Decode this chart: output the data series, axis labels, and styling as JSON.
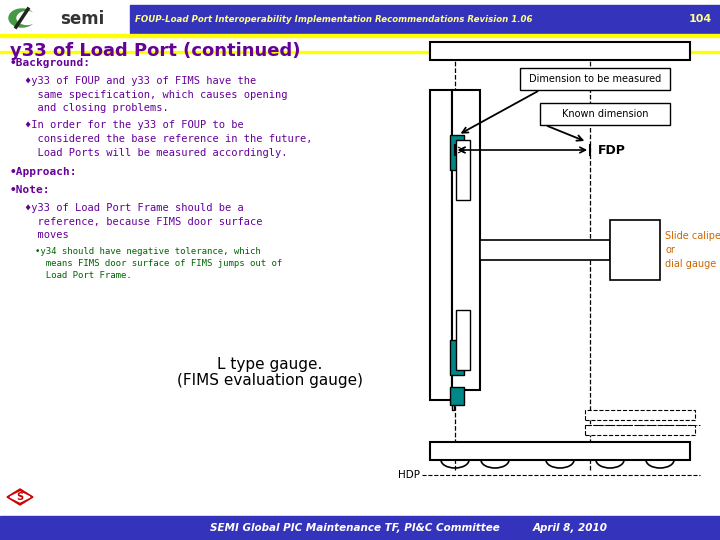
{
  "title_text": "FOUP-Load Port Interoperability Implementation Recommendations Revision 1.06",
  "page_number": "104",
  "slide_title": "y33 of Load Port (continued)",
  "header_bg": "#3333bb",
  "header_line": "#ffff00",
  "footer_bg": "#3333bb",
  "footer_text": "SEMI Global PIC Maintenance TF, PI&C Committee",
  "footer_date": "April 8, 2010",
  "bg_color": "#ffffff",
  "text_color_purple": "#660099",
  "text_color_dark": "#000000",
  "text_color_orange": "#cc6600",
  "text_color_green": "#006600",
  "semi_green": "#449944",
  "teal_color": "#008888",
  "bullet1_title": "•Background:",
  "bullet1_sub1_line1": "♦y33 of FOUP and y33 of FIMS have the",
  "bullet1_sub1_line2": "  same specification, which causes opening",
  "bullet1_sub1_line3": "  and closing problems.",
  "bullet1_sub2_line1": "♦In order for the y33 of FOUP to be",
  "bullet1_sub2_line2": "  considered the base reference in the future,",
  "bullet1_sub2_line3": "  Load Ports will be measured accordingly.",
  "bullet2_title": "•Approach:",
  "bullet3_title": "•Note:",
  "bullet3_sub1_line1": "♦y33 of Load Port Frame should be a",
  "bullet3_sub1_line2": "  reference, because FIMS door surface",
  "bullet3_sub1_line3": "  moves",
  "bullet3_sub2_line1": "•y34 should have negative tolerance, which",
  "bullet3_sub2_line2": "  means FIMS door surface of FIMS jumps out of",
  "bullet3_sub2_line3": "  Load Port Frame.",
  "label_gauge_line1": "L type gauge.",
  "label_gauge_line2": "(FIMS evaluation gauge)",
  "label_dim_to_measure": "Dimension to be measured",
  "label_known_dim": "Known dimension",
  "label_fdp": "FDP",
  "label_hdp": "HDP",
  "label_slide_caliper": "Slide caliper\nor\ndial gauge"
}
